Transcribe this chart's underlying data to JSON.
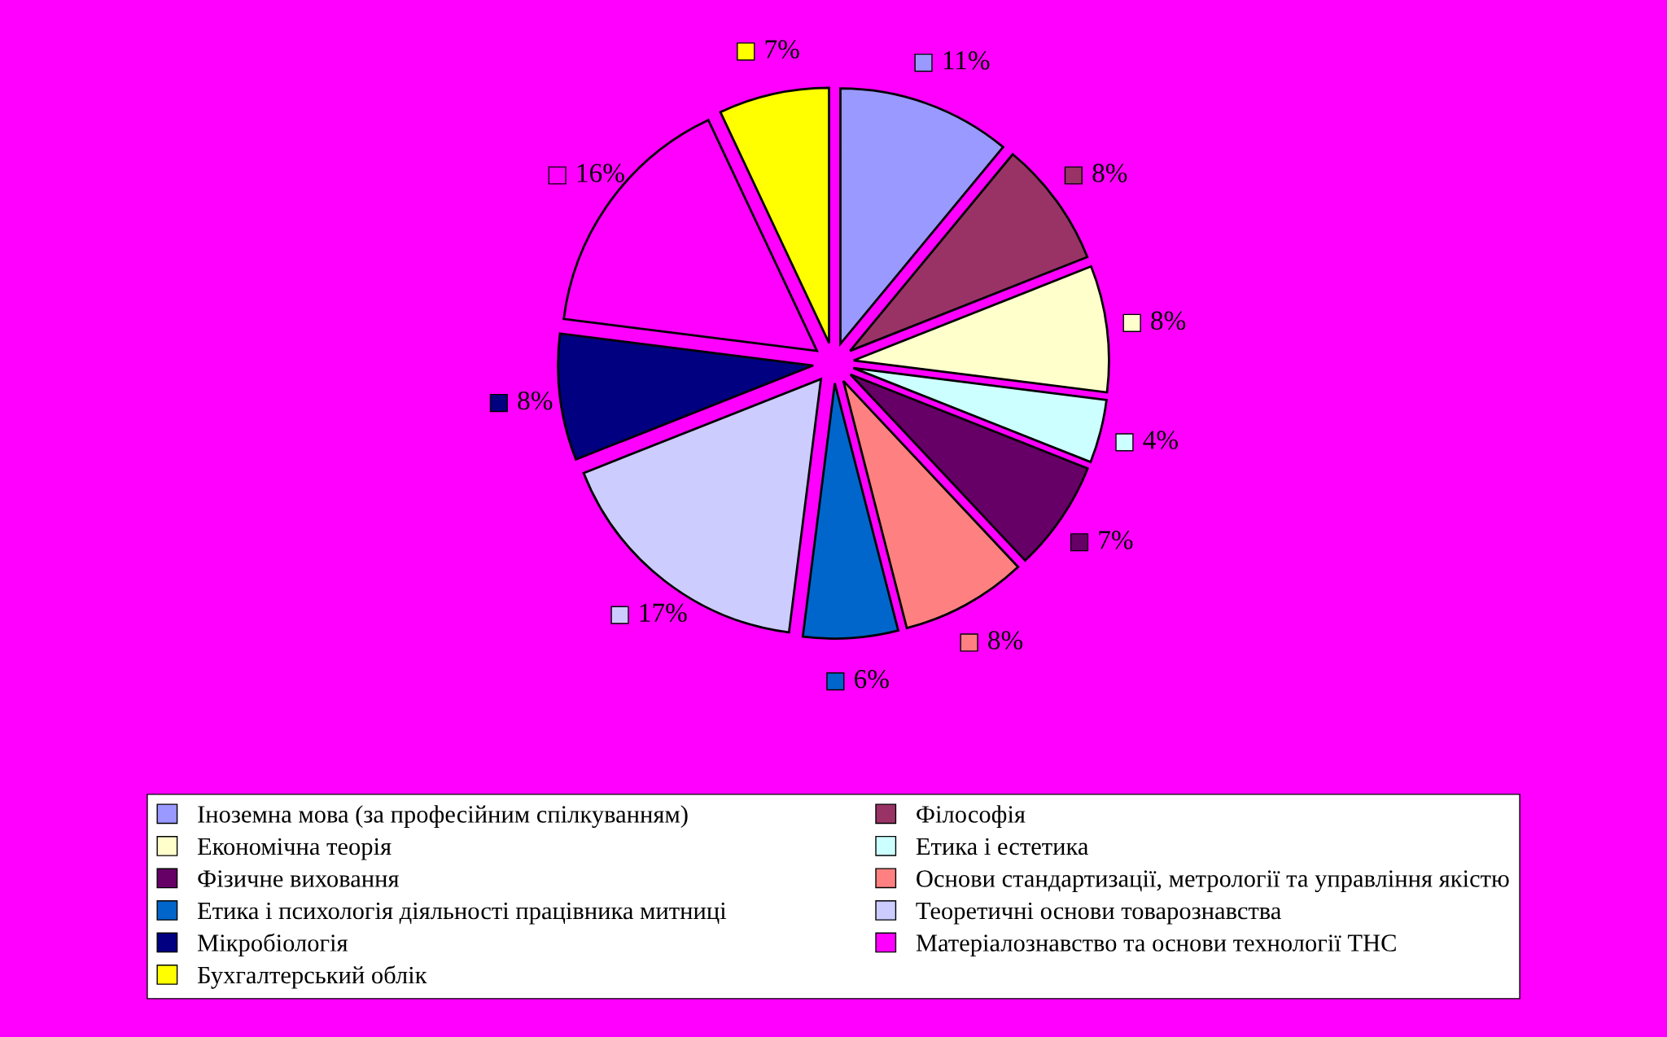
{
  "chart_data": {
    "type": "pie",
    "categories": [
      "Іноземна мова (за професійним спілкуванням)",
      "Філософія",
      "Економічна теорія",
      "Етика і естетика",
      "Фізичне виховання",
      "Основи стандартизації, метрології та управління якістю",
      "Етика і психологія діяльності працівника митниці",
      "Теоретичні основи товарознавства",
      "Мікробіологія",
      "Матеріалознавство та основи технології ТНС",
      "Бухгалтерський облік"
    ],
    "values": [
      11,
      8,
      8,
      4,
      7,
      8,
      6,
      17,
      8,
      16,
      7
    ],
    "colors": [
      "#9999ff",
      "#993366",
      "#ffffcc",
      "#ccffff",
      "#660066",
      "#ff8080",
      "#0066cc",
      "#ccccff",
      "#000080",
      "#ff00ff",
      "#ffff00"
    ],
    "value_labels": [
      "11%",
      "8%",
      "8%",
      "4%",
      "7%",
      "8%",
      "6%",
      "17%",
      "8%",
      "16%",
      "7%"
    ],
    "legend": "bottom"
  }
}
